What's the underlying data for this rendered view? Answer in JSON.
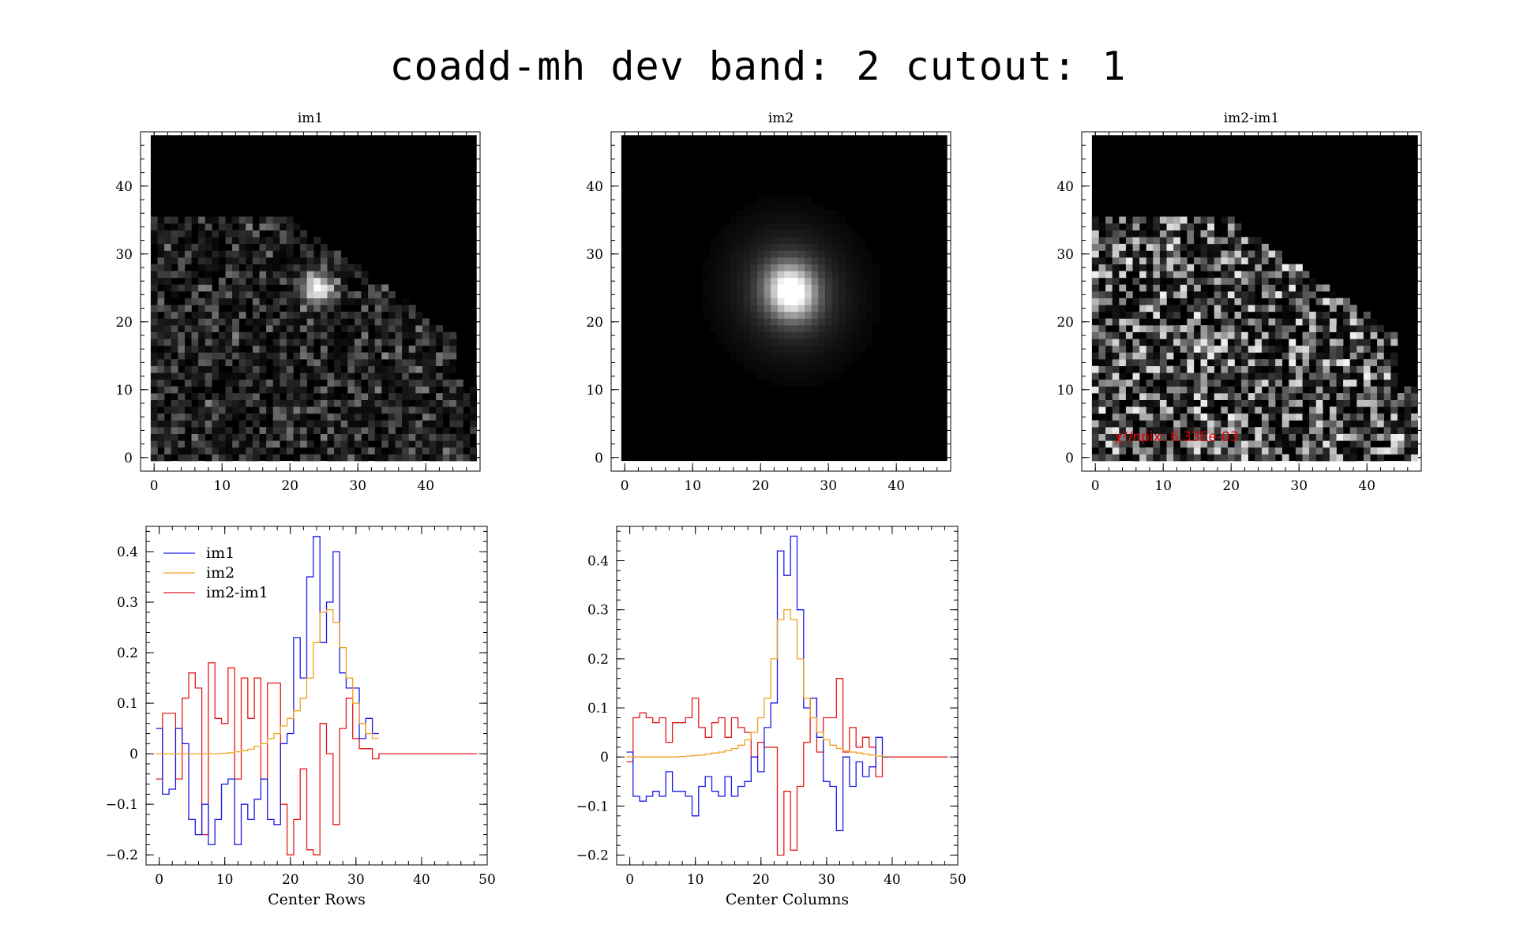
{
  "title": "coadd-mh dev band: 2 cutout: 1",
  "colors": {
    "im1": "#1a1ae6",
    "im2": "#f0a020",
    "diff": "#e61a1a",
    "annotation": "#e00000"
  },
  "chart_data": [
    {
      "type": "heatmap",
      "title": "im1",
      "xlim": [
        -2,
        48
      ],
      "ylim": [
        -2,
        48
      ],
      "xticks": [
        0,
        10,
        20,
        30,
        40
      ],
      "yticks": [
        0,
        10,
        20,
        30,
        40
      ],
      "description_values": {
        "pixel_extent": [
          0,
          47
        ],
        "peak_center": [
          23,
          26
        ]
      }
    },
    {
      "type": "heatmap",
      "title": "im2",
      "xlim": [
        -2,
        48
      ],
      "ylim": [
        -2,
        48
      ],
      "xticks": [
        0,
        10,
        20,
        30,
        40
      ],
      "yticks": [
        0,
        10,
        20,
        30,
        40
      ],
      "description_values": {
        "pixel_extent": [
          0,
          47
        ],
        "peak_center": [
          24.5,
          24.5
        ]
      }
    },
    {
      "type": "heatmap",
      "title": "im2-im1",
      "xlim": [
        -2,
        48
      ],
      "ylim": [
        -2,
        48
      ],
      "xticks": [
        0,
        10,
        20,
        30,
        40
      ],
      "yticks": [
        0,
        10,
        20,
        30,
        40
      ],
      "annotation": "χ²/npix: 6.33Ee-03"
    },
    {
      "type": "line",
      "step": true,
      "xlabel": "Center Rows",
      "xlim": [
        -2,
        50
      ],
      "ylim": [
        -0.22,
        0.45
      ],
      "xticks": [
        0,
        10,
        20,
        30,
        40,
        50
      ],
      "yticks": [
        -0.2,
        -0.1,
        0,
        0.1,
        0.2,
        0.3,
        0.4
      ],
      "ytick_labels": [
        "−0.2",
        "−0.1",
        "0",
        "0.1",
        "0.2",
        "0.3",
        "0.4"
      ],
      "legend_position": "top-left",
      "series": [
        {
          "name": "im1",
          "color": "#1a1ae6",
          "x": [
            0,
            1,
            2,
            3,
            4,
            5,
            6,
            7,
            8,
            9,
            10,
            11,
            12,
            13,
            14,
            15,
            16,
            17,
            18,
            19,
            20,
            21,
            22,
            23,
            24,
            25,
            26,
            27,
            28,
            29,
            30,
            31,
            32,
            33
          ],
          "values": [
            0.05,
            -0.08,
            -0.07,
            0.05,
            0.02,
            -0.13,
            -0.16,
            -0.1,
            -0.18,
            -0.13,
            -0.06,
            -0.05,
            -0.18,
            -0.1,
            -0.13,
            -0.09,
            -0.05,
            -0.13,
            -0.14,
            0.02,
            0.04,
            0.23,
            0.15,
            0.35,
            0.43,
            0.22,
            0.3,
            0.4,
            0.16,
            0.13,
            0.13,
            0.03,
            0.07,
            0.04
          ]
        },
        {
          "name": "im2",
          "color": "#f0a020",
          "x": [
            0,
            1,
            2,
            3,
            4,
            5,
            6,
            7,
            8,
            9,
            10,
            11,
            12,
            13,
            14,
            15,
            16,
            17,
            18,
            19,
            20,
            21,
            22,
            23,
            24,
            25,
            26,
            27,
            28,
            29,
            30,
            31,
            32,
            33
          ],
          "values": [
            0.0,
            0.0,
            0.0,
            0.0,
            0.0,
            0.0,
            0.0,
            0.0,
            0.0,
            0.0,
            0.001,
            0.002,
            0.004,
            0.006,
            0.009,
            0.015,
            0.02,
            0.03,
            0.04,
            0.055,
            0.07,
            0.085,
            0.11,
            0.15,
            0.22,
            0.28,
            0.285,
            0.26,
            0.21,
            0.15,
            0.1,
            0.06,
            0.04,
            0.03
          ]
        },
        {
          "name": "im2-im1",
          "color": "#e61a1a",
          "x": [
            0,
            1,
            2,
            3,
            4,
            5,
            6,
            7,
            8,
            9,
            10,
            11,
            12,
            13,
            14,
            15,
            16,
            17,
            18,
            19,
            20,
            21,
            22,
            23,
            24,
            25,
            26,
            27,
            28,
            29,
            30,
            31,
            32,
            33,
            34,
            35,
            36,
            37,
            38,
            39,
            40,
            41,
            42,
            43,
            44,
            45,
            46,
            47,
            48
          ],
          "values": [
            -0.05,
            0.08,
            0.08,
            -0.05,
            0.11,
            0.16,
            0.13,
            -0.16,
            0.18,
            0.07,
            0.06,
            0.17,
            -0.05,
            0.15,
            0.07,
            0.15,
            -0.05,
            0.14,
            0.14,
            -0.1,
            -0.2,
            -0.13,
            -0.03,
            -0.19,
            -0.2,
            0.06,
            0.0,
            -0.14,
            0.05,
            0.11,
            0.03,
            0.01,
            0.01,
            -0.01,
            0,
            0,
            0,
            0,
            0,
            0,
            0,
            0,
            0,
            0,
            0,
            0,
            0,
            0,
            0
          ]
        }
      ]
    },
    {
      "type": "line",
      "step": true,
      "xlabel": "Center Columns",
      "xlim": [
        -2,
        50
      ],
      "ylim": [
        -0.22,
        0.47
      ],
      "xticks": [
        0,
        10,
        20,
        30,
        40,
        50
      ],
      "yticks": [
        -0.2,
        -0.1,
        0,
        0.1,
        0.2,
        0.3,
        0.4
      ],
      "ytick_labels": [
        "−0.2",
        "−0.1",
        "0",
        "0.1",
        "0.2",
        "0.3",
        "0.4"
      ],
      "series": [
        {
          "name": "im1",
          "color": "#1a1ae6",
          "x": [
            0,
            1,
            2,
            3,
            4,
            5,
            6,
            7,
            8,
            9,
            10,
            11,
            12,
            13,
            14,
            15,
            16,
            17,
            18,
            19,
            20,
            21,
            22,
            23,
            24,
            25,
            26,
            27,
            28,
            29,
            30,
            31,
            32,
            33,
            34,
            35,
            36,
            37,
            38,
            39
          ],
          "values": [
            0.01,
            -0.08,
            -0.09,
            -0.08,
            -0.07,
            -0.08,
            -0.03,
            -0.07,
            -0.07,
            -0.08,
            -0.12,
            -0.06,
            -0.04,
            -0.07,
            -0.08,
            -0.04,
            -0.08,
            -0.06,
            -0.05,
            0.0,
            -0.03,
            0.06,
            0.11,
            0.42,
            0.37,
            0.45,
            0.3,
            0.1,
            0.12,
            0.04,
            -0.05,
            -0.06,
            -0.15,
            0.0,
            -0.06,
            -0.01,
            -0.04,
            -0.02,
            0.04,
            0.0
          ]
        },
        {
          "name": "im2",
          "color": "#f0a020",
          "x": [
            0,
            1,
            2,
            3,
            4,
            5,
            6,
            7,
            8,
            9,
            10,
            11,
            12,
            13,
            14,
            15,
            16,
            17,
            18,
            19,
            20,
            21,
            22,
            23,
            24,
            25,
            26,
            27,
            28,
            29,
            30,
            31,
            32,
            33,
            34,
            35,
            36,
            37,
            38,
            39
          ],
          "values": [
            0,
            0,
            0,
            0,
            0,
            0,
            0,
            0,
            0.001,
            0.002,
            0.003,
            0.004,
            0.006,
            0.008,
            0.01,
            0.013,
            0.017,
            0.024,
            0.035,
            0.05,
            0.08,
            0.12,
            0.2,
            0.28,
            0.3,
            0.28,
            0.2,
            0.12,
            0.08,
            0.05,
            0.035,
            0.024,
            0.017,
            0.013,
            0.01,
            0.008,
            0.006,
            0.004,
            0.002,
            0.001
          ]
        },
        {
          "name": "im2-im1",
          "color": "#e61a1a",
          "x": [
            0,
            1,
            2,
            3,
            4,
            5,
            6,
            7,
            8,
            9,
            10,
            11,
            12,
            13,
            14,
            15,
            16,
            17,
            18,
            19,
            20,
            21,
            22,
            23,
            24,
            25,
            26,
            27,
            28,
            29,
            30,
            31,
            32,
            33,
            34,
            35,
            36,
            37,
            38,
            39,
            40,
            41,
            42,
            43,
            44,
            45,
            46,
            47,
            48
          ],
          "values": [
            -0.01,
            0.08,
            0.09,
            0.08,
            0.07,
            0.08,
            0.03,
            0.07,
            0.07,
            0.08,
            0.12,
            0.06,
            0.04,
            0.07,
            0.08,
            0.04,
            0.08,
            0.06,
            0.05,
            0.0,
            0.03,
            0.02,
            0.02,
            -0.2,
            -0.07,
            -0.19,
            -0.06,
            0.03,
            0.12,
            0.01,
            0.08,
            0.08,
            0.16,
            0.01,
            0.06,
            0.02,
            0.04,
            0.02,
            -0.04,
            0,
            0,
            0,
            0,
            0,
            0,
            0,
            0,
            0,
            0
          ]
        }
      ]
    }
  ]
}
